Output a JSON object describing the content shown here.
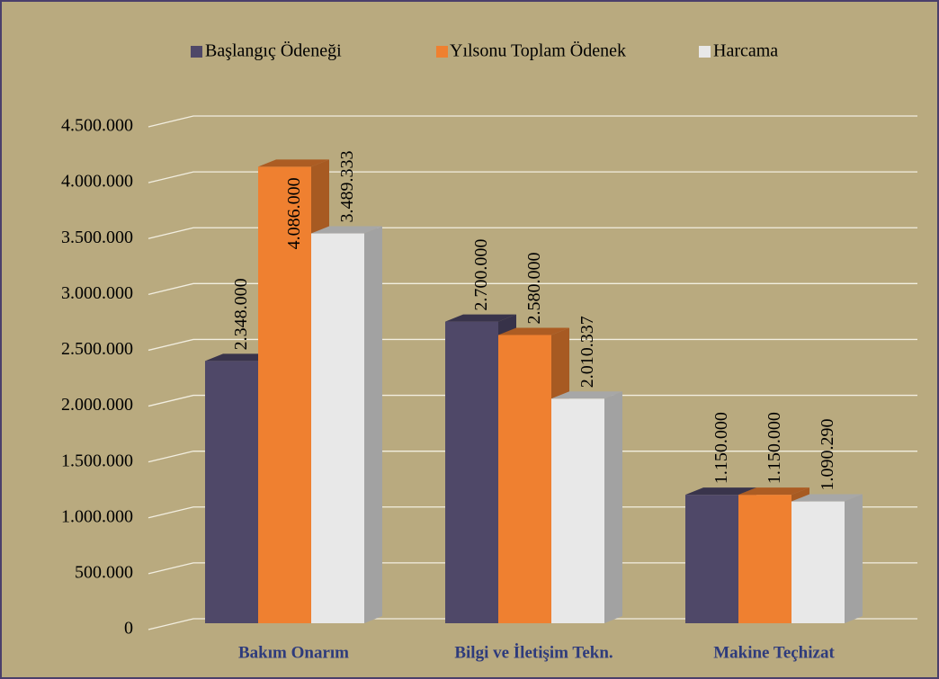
{
  "chart_data": {
    "type": "bar3d",
    "categories": [
      "Bakım Onarım",
      "Bilgi ve İletişim Tekn.",
      "Makine Teçhizat"
    ],
    "series": [
      {
        "name": "Başlangıç Ödeneği",
        "color": "#4f4868",
        "values": [
          2348000,
          2700000,
          1150000
        ],
        "value_labels": [
          "2.348.000",
          "2.700.000",
          "1.150.000"
        ]
      },
      {
        "name": "Yılsonu Toplam Ödenek",
        "color": "#ef8030",
        "values": [
          4086000,
          2580000,
          1150000
        ],
        "value_labels": [
          "4.086.000",
          "2.580.000",
          "1.150.000"
        ]
      },
      {
        "name": "Harcama",
        "color": "#e8e8e8",
        "values": [
          3489333,
          2010337,
          1090290
        ],
        "value_labels": [
          "3.489.333",
          "2.010.337",
          "1.090.290"
        ]
      }
    ],
    "ylim": [
      0,
      4500000
    ],
    "yticks": [
      0,
      {
        "value": 500000,
        "label": "500.000"
      },
      {
        "value": 1000000,
        "label": "1.000.000"
      },
      {
        "value": 1500000,
        "label": "1.500.000"
      },
      {
        "value": 2000000,
        "label": "2.000.000"
      },
      {
        "value": 2500000,
        "label": "2.500.000"
      },
      {
        "value": 3000000,
        "label": "3.000.000"
      },
      {
        "value": 3500000,
        "label": "3.500.000"
      },
      {
        "value": 4000000,
        "label": "4.000.000"
      },
      {
        "value": 4500000,
        "label": "4.500.000"
      }
    ],
    "grid": true,
    "legend": "top"
  }
}
